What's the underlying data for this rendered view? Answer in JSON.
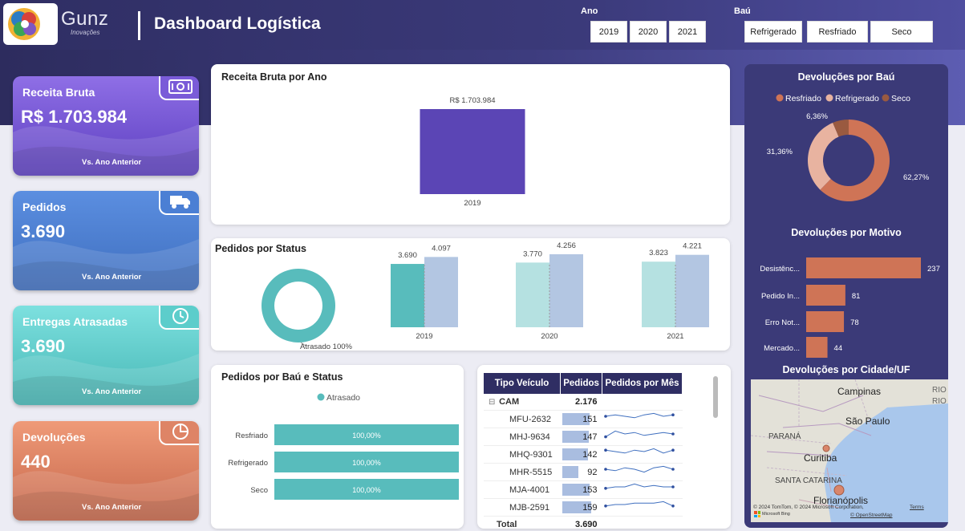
{
  "header": {
    "logo_name": "Gunz",
    "logo_sub": "Inovações",
    "title": "Dashboard Logística",
    "ano_label": "Ano",
    "anos": [
      "2019",
      "2020",
      "2021"
    ],
    "bau_label": "Baú",
    "baus": [
      "Refrigerado",
      "Resfriado",
      "Seco"
    ]
  },
  "kpis": [
    {
      "label": "Receita Bruta",
      "value": "R$ 1.703.984",
      "foot": "Vs. Ano Anterior",
      "icon": "money-icon",
      "color_top": "#8f6fe6",
      "color_bottom": "#5c3fc0"
    },
    {
      "label": "Pedidos",
      "value": "3.690",
      "foot": "Vs. Ano Anterior",
      "icon": "truck-icon",
      "color_top": "#5b8ee0",
      "color_bottom": "#3f6fbf"
    },
    {
      "label": "Entregas Atrasadas",
      "value": "3.690",
      "foot": "Vs. Ano Anterior",
      "icon": "clock-icon",
      "color_top": "#7de0df",
      "color_bottom": "#46b7b5"
    },
    {
      "label": "Devoluções",
      "value": "440",
      "foot": "Vs. Ano Anterior",
      "icon": "pie-chart-icon",
      "color_top": "#ef9a78",
      "color_bottom": "#c5664a"
    }
  ],
  "chart_data": [
    {
      "type": "bar",
      "title": "Receita Bruta por Ano",
      "categories": [
        "2019"
      ],
      "values": [
        1703984
      ],
      "data_labels": [
        "R$ 1.703.984"
      ],
      "ylim": [
        0,
        1703984
      ],
      "color": "#5b45b5"
    },
    {
      "type": "bar",
      "title": "Pedidos por Status",
      "donut": {
        "label": "Atrasado 100%",
        "value": 100,
        "color": "#58bcbc"
      },
      "categories": [
        "2019",
        "2020",
        "2021"
      ],
      "series": [
        {
          "values": [
            3690,
            3770,
            3823
          ],
          "labels": [
            "3.690",
            "3.770",
            "3.823"
          ]
        },
        {
          "values": [
            4097,
            4256,
            4221
          ],
          "labels": [
            "4.097",
            "4.256",
            "4.221"
          ]
        }
      ],
      "ylim": [
        0,
        4300
      ]
    },
    {
      "type": "bar",
      "title": "Pedidos por Baú e Status",
      "legend": "Atrasado",
      "categories": [
        "Resfriado",
        "Refrigerado",
        "Seco"
      ],
      "values": [
        100,
        100,
        100
      ],
      "data_labels": [
        "100,00%",
        "100,00%",
        "100,00%"
      ],
      "color": "#58bcbc"
    },
    {
      "type": "pie",
      "title": "Devoluções por Baú",
      "legend": [
        "Resfriado",
        "Refrigerado",
        "Seco"
      ],
      "values": [
        62.27,
        31.36,
        6.36
      ],
      "data_labels": [
        "62,27%",
        "31,36%",
        "6,36%"
      ],
      "colors": [
        "#cf7456",
        "#e8b3a0",
        "#9a5a40"
      ]
    },
    {
      "type": "bar",
      "title": "Devoluções por Motivo",
      "categories": [
        "Desistênc...",
        "Pedido In...",
        "Erro Not...",
        "Mercado..."
      ],
      "values": [
        237,
        81,
        78,
        44
      ],
      "xlim": [
        0,
        237
      ],
      "color": "#cf7456"
    }
  ],
  "table": {
    "headers": [
      "Tipo Veículo",
      "Pedidos",
      "Pedidos por Mês"
    ],
    "group": {
      "name": "CAM",
      "value": "2.176"
    },
    "rows": [
      {
        "name": "MFU-2632",
        "value": "151",
        "n": 151,
        "trend": [
          5,
          6,
          5,
          4,
          6,
          7,
          5,
          6
        ]
      },
      {
        "name": "MHJ-9634",
        "value": "147",
        "n": 147,
        "trend": [
          3,
          7,
          5,
          6,
          4,
          5,
          6,
          5
        ]
      },
      {
        "name": "MHQ-9301",
        "value": "142",
        "n": 142,
        "trend": [
          6,
          5,
          4,
          6,
          5,
          7,
          4,
          6
        ]
      },
      {
        "name": "MHR-5515",
        "value": "92",
        "n": 92,
        "trend": [
          5,
          4,
          6,
          5,
          3,
          6,
          7,
          5
        ]
      },
      {
        "name": "MJA-4001",
        "value": "153",
        "n": 153,
        "trend": [
          4,
          5,
          5,
          7,
          5,
          6,
          5,
          5
        ]
      },
      {
        "name": "MJB-2591",
        "value": "159",
        "n": 159,
        "trend": [
          4,
          5,
          5,
          6,
          6,
          6,
          7,
          4
        ]
      }
    ],
    "total_label": "Total",
    "total_value": "3.690"
  },
  "map": {
    "title": "Devoluções por Cidade/UF",
    "labels": [
      "Campinas",
      "São Paulo",
      "PARANÁ",
      "Curitiba",
      "SANTA CATARINA",
      "Florianópolis",
      "RIO",
      "RIO"
    ],
    "attribution": "© 2024 TomTom, © 2024 Microsoft Corporation,",
    "terms": "Terms",
    "osm": "© OpenStreetMap",
    "bing": "Microsoft Bing"
  }
}
